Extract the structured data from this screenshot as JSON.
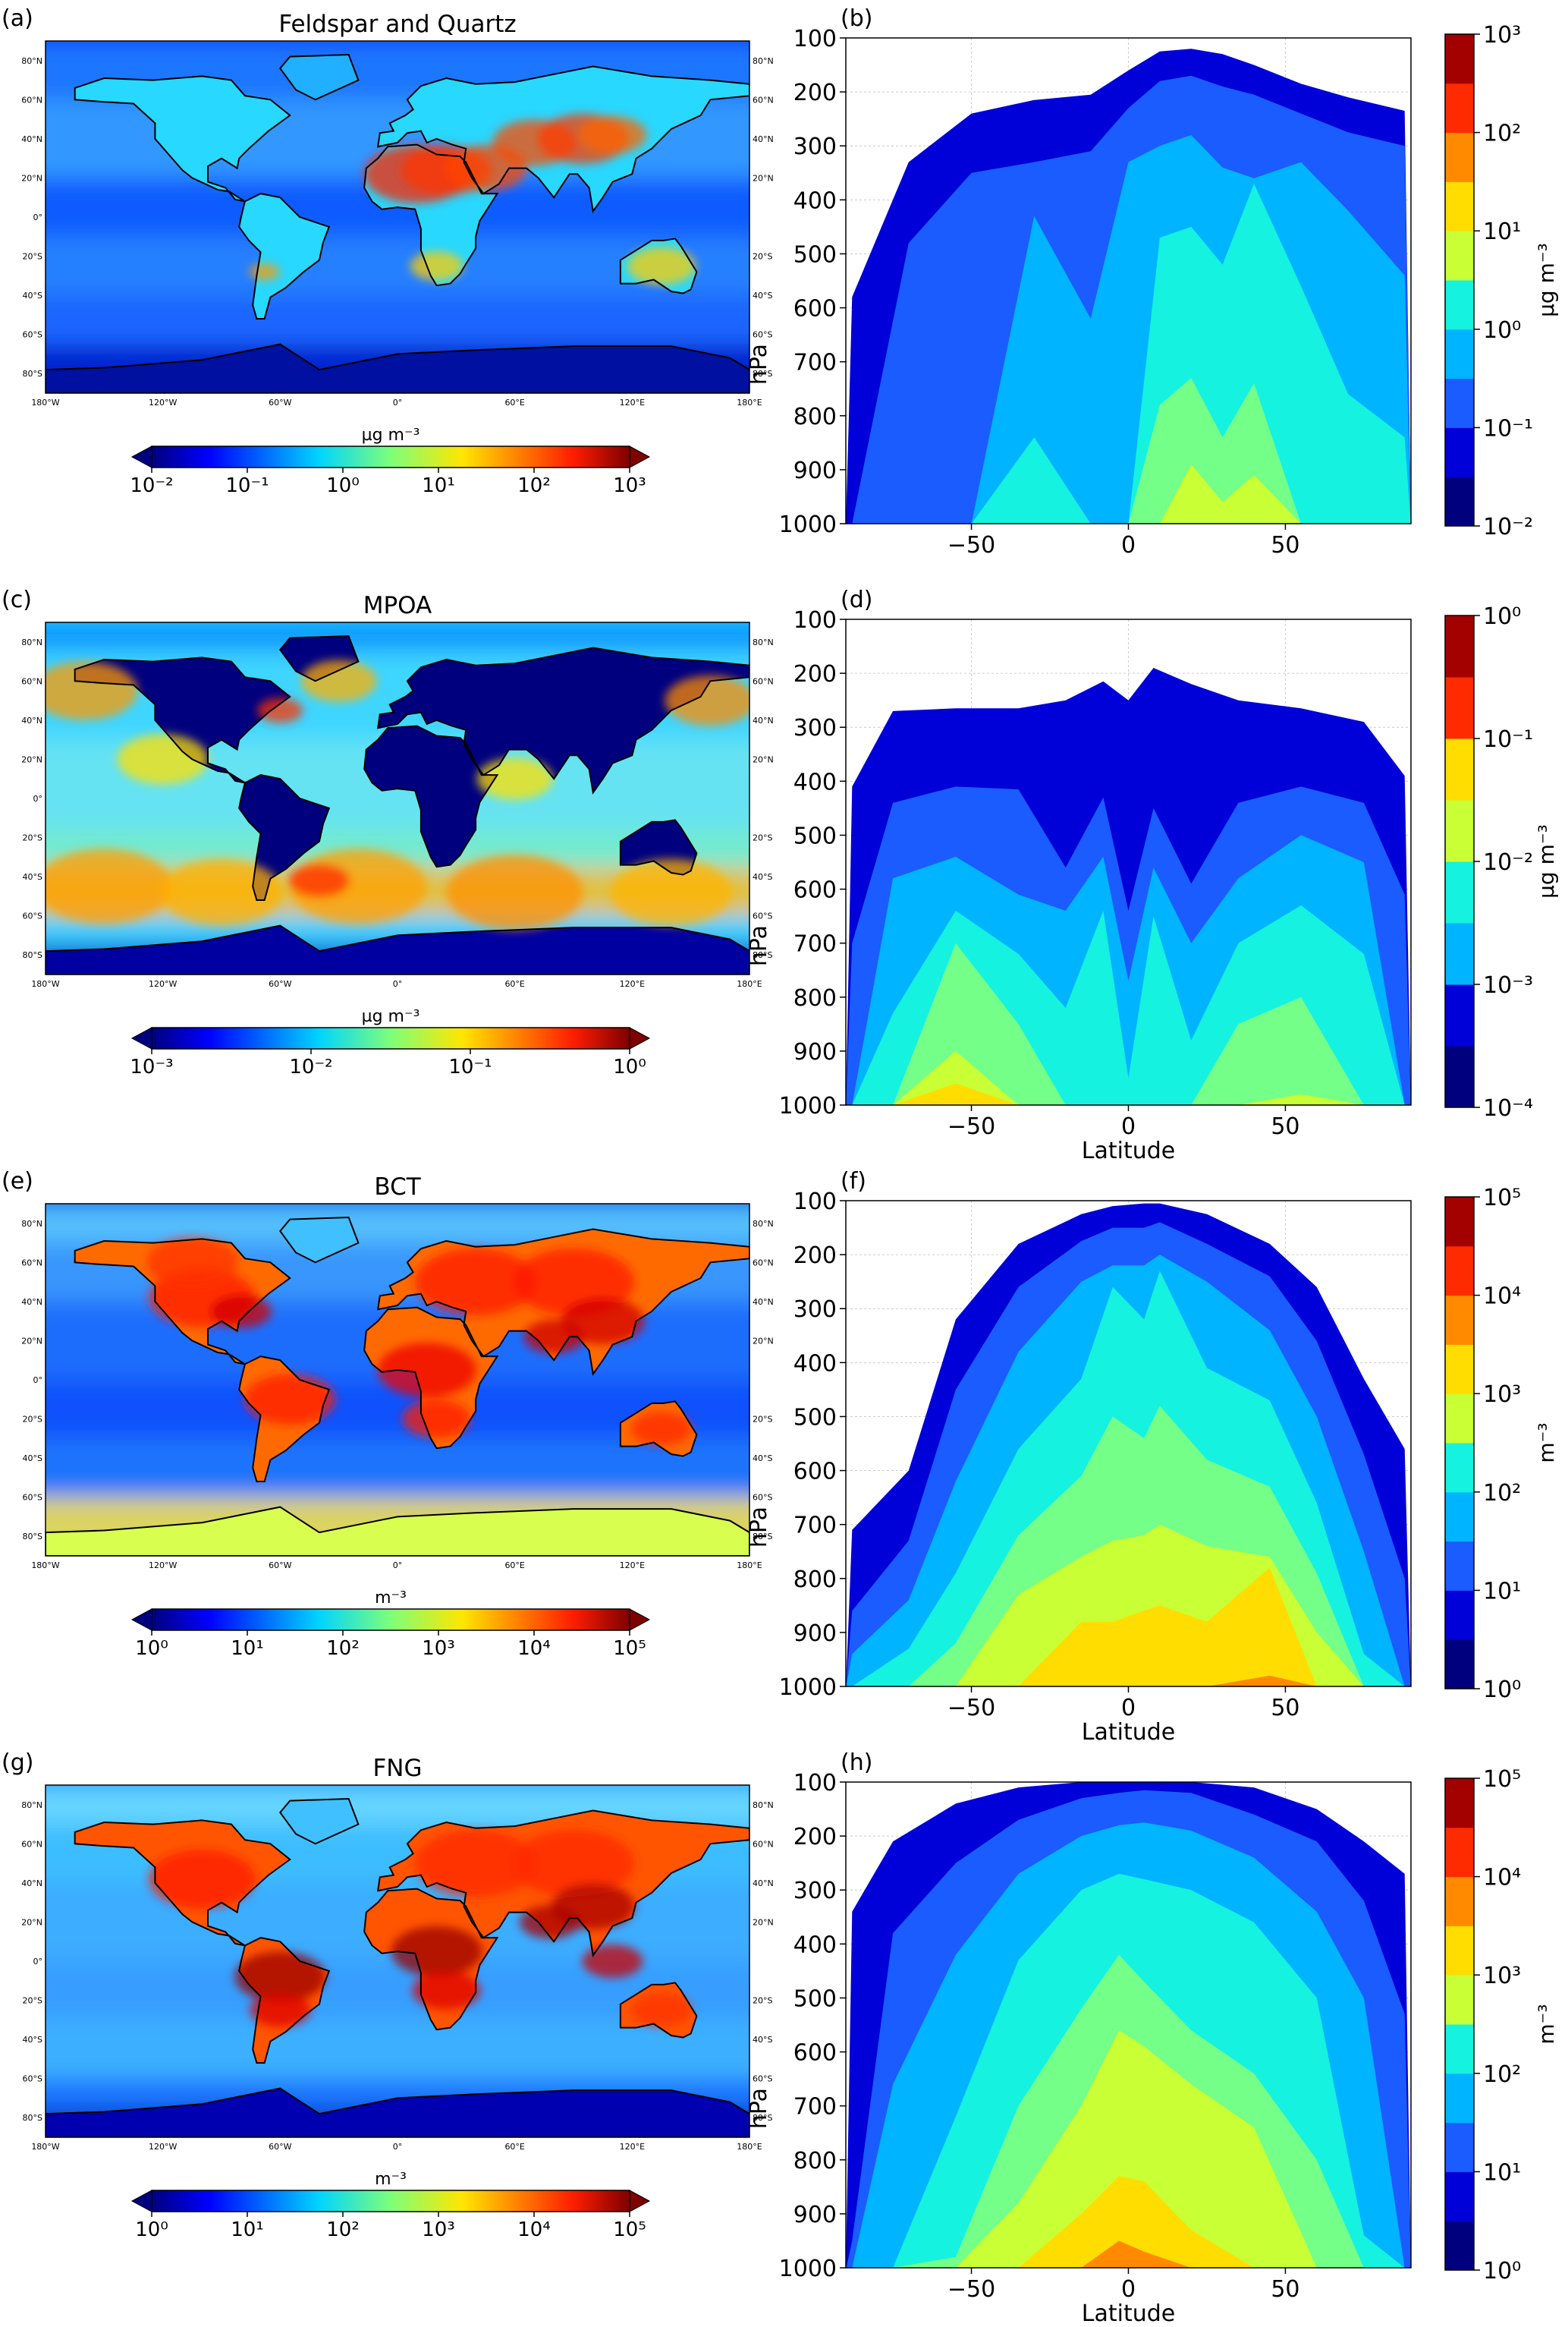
{
  "rows": [
    {
      "map": {
        "panel": "(a)",
        "title": "Feldspar and Quartz",
        "style": "dust",
        "cbar_label": "µg m⁻³",
        "cbar_ticks": [
          "10⁻²",
          "10⁻¹",
          "10⁰",
          "10¹",
          "10²",
          "10³"
        ]
      },
      "profile": {
        "panel": "(b)",
        "shape": "dust",
        "xlabel": "",
        "ylabel": "hPa",
        "cbar_label": "µg m⁻³",
        "cbar_ticks": [
          "10⁻²",
          "10⁻¹",
          "10⁰",
          "10¹",
          "10²",
          "10³"
        ]
      }
    },
    {
      "map": {
        "panel": "(c)",
        "title": "MPOA",
        "style": "ocean",
        "cbar_label": "µg m⁻³",
        "cbar_ticks": [
          "10⁻³",
          "10⁻²",
          "10⁻¹",
          "10⁰"
        ]
      },
      "profile": {
        "panel": "(d)",
        "shape": "mpoa",
        "xlabel": "Latitude",
        "ylabel": "hPa",
        "cbar_label": "µg m⁻³",
        "cbar_ticks": [
          "10⁻⁴",
          "10⁻³",
          "10⁻²",
          "10⁻¹",
          "10⁰"
        ]
      }
    },
    {
      "map": {
        "panel": "(e)",
        "title": "BCT",
        "style": "land",
        "cbar_label": "m⁻³",
        "cbar_ticks": [
          "10⁰",
          "10¹",
          "10²",
          "10³",
          "10⁴",
          "10⁵"
        ]
      },
      "profile": {
        "panel": "(f)",
        "shape": "bct",
        "xlabel": "Latitude",
        "ylabel": "hPa",
        "cbar_label": "m⁻³",
        "cbar_ticks": [
          "10⁰",
          "10¹",
          "10²",
          "10³",
          "10⁴",
          "10⁵"
        ]
      }
    },
    {
      "map": {
        "panel": "(g)",
        "title": "FNG",
        "style": "land2",
        "cbar_label": "m⁻³",
        "cbar_ticks": [
          "10⁰",
          "10¹",
          "10²",
          "10³",
          "10⁴",
          "10⁵"
        ]
      },
      "profile": {
        "panel": "(h)",
        "shape": "fng",
        "xlabel": "Latitude",
        "ylabel": "hPa",
        "cbar_label": "m⁻³",
        "cbar_ticks": [
          "10⁰",
          "10¹",
          "10²",
          "10³",
          "10⁴",
          "10⁵"
        ]
      }
    }
  ],
  "map_axes": {
    "lat_ticks_left": [
      "80°N",
      "60°N",
      "40°N",
      "20°N",
      "0°",
      "20°S",
      "40°S",
      "60°S",
      "80°S"
    ],
    "lat_ticks_right": [
      "80°N",
      "60°N",
      "40°N",
      "20°N",
      "",
      "20°S",
      "40°S",
      "60°S",
      "80°S"
    ],
    "lon_ticks": [
      "180°W",
      "120°W",
      "60°W",
      "0°",
      "60°E",
      "120°E",
      "180°E"
    ]
  },
  "chart_data": [
    {
      "type": "heatmap",
      "panel": "(b)",
      "xlabel": "",
      "ylabel": "hPa",
      "xlim": [
        -90,
        90
      ],
      "ylim": [
        1000,
        100
      ],
      "x_ticks": [
        -50,
        0,
        50
      ],
      "y_ticks": [
        100,
        200,
        300,
        400,
        500,
        600,
        700,
        800,
        900,
        1000
      ],
      "colorbar": {
        "label": "µg m⁻³",
        "range": [
          0.01,
          1000
        ],
        "scale": "log",
        "levels": 10
      },
      "level_tops_hPa": [
        {
          "lat": -88,
          "tops": [
            580,
            1000,
            1000,
            1000,
            1000,
            1000,
            1000,
            1000
          ]
        },
        {
          "lat": -70,
          "tops": [
            330,
            480,
            1000,
            1000,
            1000,
            1000,
            1000,
            1000
          ]
        },
        {
          "lat": -50,
          "tops": [
            240,
            350,
            1000,
            1000,
            1000,
            1000,
            1000,
            1000
          ]
        },
        {
          "lat": -30,
          "tops": [
            215,
            330,
            430,
            840,
            1000,
            1000,
            1000,
            1000
          ]
        },
        {
          "lat": -12,
          "tops": [
            205,
            310,
            620,
            1000,
            1000,
            1000,
            1000,
            1000
          ]
        },
        {
          "lat": 0,
          "tops": [
            160,
            230,
            330,
            1000,
            1000,
            1000,
            1000,
            1000
          ]
        },
        {
          "lat": 10,
          "tops": [
            125,
            180,
            300,
            470,
            780,
            1000,
            1000,
            1000
          ]
        },
        {
          "lat": 20,
          "tops": [
            120,
            170,
            280,
            450,
            730,
            890,
            1000,
            1000
          ]
        },
        {
          "lat": 30,
          "tops": [
            130,
            190,
            340,
            520,
            840,
            960,
            1000,
            1000
          ]
        },
        {
          "lat": 40,
          "tops": [
            150,
            205,
            360,
            370,
            740,
            910,
            1000,
            1000
          ]
        },
        {
          "lat": 55,
          "tops": [
            185,
            240,
            330,
            560,
            1000,
            1000,
            1000,
            1000
          ]
        },
        {
          "lat": 70,
          "tops": [
            210,
            275,
            420,
            760,
            1000,
            1000,
            1000,
            1000
          ]
        },
        {
          "lat": 88,
          "tops": [
            235,
            300,
            540,
            840,
            1000,
            1000,
            1000,
            1000
          ]
        }
      ]
    },
    {
      "type": "heatmap",
      "panel": "(d)",
      "xlabel": "Latitude",
      "ylabel": "hPa",
      "xlim": [
        -90,
        90
      ],
      "ylim": [
        1000,
        100
      ],
      "x_ticks": [
        -50,
        0,
        50
      ],
      "y_ticks": [
        100,
        200,
        300,
        400,
        500,
        600,
        700,
        800,
        900,
        1000
      ],
      "colorbar": {
        "label": "µg m⁻³",
        "range": [
          0.0001,
          1
        ],
        "scale": "log",
        "levels": 8
      },
      "level_tops_hPa": [
        {
          "lat": -88,
          "tops": [
            410,
            700,
            1000,
            1000,
            1000,
            1000,
            1000
          ]
        },
        {
          "lat": -75,
          "tops": [
            270,
            440,
            580,
            830,
            1000,
            1000,
            1000
          ]
        },
        {
          "lat": -55,
          "tops": [
            265,
            410,
            540,
            640,
            700,
            900,
            960
          ]
        },
        {
          "lat": -35,
          "tops": [
            265,
            415,
            610,
            720,
            850,
            1000,
            1000
          ]
        },
        {
          "lat": -20,
          "tops": [
            250,
            560,
            640,
            820,
            1000,
            1000,
            1000
          ]
        },
        {
          "lat": -8,
          "tops": [
            215,
            430,
            540,
            640,
            1000,
            1000,
            1000
          ]
        },
        {
          "lat": 0,
          "tops": [
            250,
            640,
            770,
            950,
            1000,
            1000,
            1000
          ]
        },
        {
          "lat": 8,
          "tops": [
            190,
            450,
            560,
            650,
            1000,
            1000,
            1000
          ]
        },
        {
          "lat": 20,
          "tops": [
            220,
            590,
            700,
            880,
            1000,
            1000,
            1000
          ]
        },
        {
          "lat": 35,
          "tops": [
            250,
            440,
            580,
            700,
            850,
            1000,
            1000
          ]
        },
        {
          "lat": 55,
          "tops": [
            265,
            410,
            500,
            630,
            800,
            980,
            1000
          ]
        },
        {
          "lat": 75,
          "tops": [
            290,
            440,
            550,
            720,
            1000,
            1000,
            1000
          ]
        },
        {
          "lat": 88,
          "tops": [
            390,
            610,
            1000,
            1000,
            1000,
            1000,
            1000
          ]
        }
      ]
    },
    {
      "type": "heatmap",
      "panel": "(f)",
      "xlabel": "Latitude",
      "ylabel": "hPa",
      "xlim": [
        -90,
        90
      ],
      "ylim": [
        1000,
        100
      ],
      "x_ticks": [
        -50,
        0,
        50
      ],
      "y_ticks": [
        100,
        200,
        300,
        400,
        500,
        600,
        700,
        800,
        900,
        1000
      ],
      "colorbar": {
        "label": "m⁻³",
        "range": [
          1,
          100000
        ],
        "scale": "log",
        "levels": 10
      },
      "level_tops_hPa": [
        {
          "lat": -88,
          "tops": [
            710,
            860,
            940,
            1000,
            1000,
            1000,
            1000,
            1000
          ]
        },
        {
          "lat": -70,
          "tops": [
            600,
            730,
            840,
            930,
            1000,
            1000,
            1000,
            1000
          ]
        },
        {
          "lat": -55,
          "tops": [
            320,
            450,
            620,
            790,
            920,
            1000,
            1000,
            1000
          ]
        },
        {
          "lat": -35,
          "tops": [
            180,
            260,
            380,
            560,
            720,
            830,
            1000,
            1000
          ]
        },
        {
          "lat": -15,
          "tops": [
            125,
            175,
            250,
            430,
            610,
            760,
            880,
            1000
          ]
        },
        {
          "lat": -5,
          "tops": [
            110,
            150,
            220,
            260,
            500,
            730,
            880,
            1000
          ]
        },
        {
          "lat": 5,
          "tops": [
            105,
            150,
            220,
            320,
            540,
            720,
            860,
            1000
          ]
        },
        {
          "lat": 10,
          "tops": [
            105,
            140,
            200,
            230,
            480,
            700,
            850,
            1000
          ]
        },
        {
          "lat": 25,
          "tops": [
            125,
            180,
            250,
            410,
            580,
            740,
            880,
            1000
          ]
        },
        {
          "lat": 45,
          "tops": [
            180,
            240,
            340,
            470,
            630,
            760,
            780,
            980
          ]
        },
        {
          "lat": 60,
          "tops": [
            260,
            360,
            500,
            660,
            790,
            900,
            1000,
            1000
          ]
        },
        {
          "lat": 75,
          "tops": [
            430,
            570,
            750,
            940,
            1000,
            1000,
            1000,
            1000
          ]
        },
        {
          "lat": 88,
          "tops": [
            560,
            800,
            1000,
            1000,
            1000,
            1000,
            1000,
            1000
          ]
        }
      ]
    },
    {
      "type": "heatmap",
      "panel": "(h)",
      "xlabel": "Latitude",
      "ylabel": "hPa",
      "xlim": [
        -90,
        90
      ],
      "ylim": [
        1000,
        100
      ],
      "x_ticks": [
        -50,
        0,
        50
      ],
      "y_ticks": [
        100,
        200,
        300,
        400,
        500,
        600,
        700,
        800,
        900,
        1000
      ],
      "colorbar": {
        "label": "m⁻³",
        "range": [
          1,
          100000
        ],
        "scale": "log",
        "levels": 10
      },
      "level_tops_hPa": [
        {
          "lat": -88,
          "tops": [
            340,
            950,
            1000,
            1000,
            1000,
            1000,
            1000,
            1000
          ]
        },
        {
          "lat": -75,
          "tops": [
            210,
            380,
            660,
            1000,
            1000,
            1000,
            1000,
            1000
          ]
        },
        {
          "lat": -55,
          "tops": [
            140,
            250,
            420,
            720,
            980,
            1000,
            1000,
            1000
          ]
        },
        {
          "lat": -35,
          "tops": [
            110,
            170,
            270,
            430,
            700,
            880,
            1000,
            1000
          ]
        },
        {
          "lat": -15,
          "tops": [
            100,
            130,
            200,
            300,
            520,
            700,
            900,
            1000
          ]
        },
        {
          "lat": -3,
          "tops": [
            100,
            120,
            180,
            270,
            420,
            560,
            830,
            950
          ]
        },
        {
          "lat": 5,
          "tops": [
            100,
            115,
            175,
            280,
            470,
            590,
            840,
            970
          ]
        },
        {
          "lat": 20,
          "tops": [
            100,
            120,
            190,
            300,
            560,
            660,
            930,
            1000
          ]
        },
        {
          "lat": 40,
          "tops": [
            110,
            160,
            240,
            360,
            640,
            740,
            1000,
            1000
          ]
        },
        {
          "lat": 60,
          "tops": [
            150,
            210,
            340,
            500,
            800,
            1000,
            1000,
            1000
          ]
        },
        {
          "lat": 75,
          "tops": [
            210,
            320,
            500,
            940,
            1000,
            1000,
            1000,
            1000
          ]
        },
        {
          "lat": 88,
          "tops": [
            270,
            530,
            1000,
            1000,
            1000,
            1000,
            1000,
            1000
          ]
        }
      ]
    }
  ]
}
